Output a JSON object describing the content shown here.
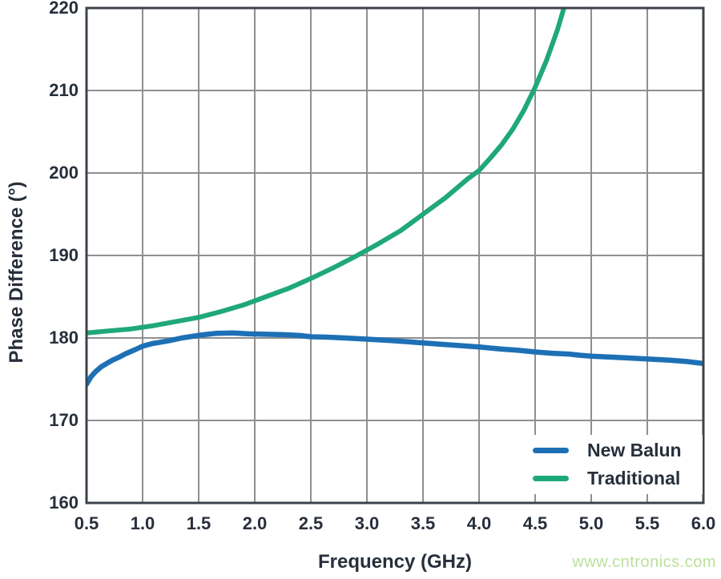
{
  "watermark": "www.cntronics.com",
  "colors": {
    "new_balun_blue": "#1d70b5",
    "traditional_green": "#1fa878",
    "text": "#272f3b",
    "grid": "#8f8f8f",
    "plot_border": "#3d434d",
    "watermark_green": "#b9e19c",
    "background": "#ffffff"
  },
  "chart_data": {
    "type": "line",
    "title": "",
    "xlabel": "Frequency (GHz)",
    "ylabel": "Phase Difference (°)",
    "xlim": [
      0.5,
      6.0
    ],
    "ylim": [
      160,
      220
    ],
    "grid": true,
    "legend_position": "lower right",
    "x_ticks": [
      "0.5",
      "1.0",
      "1.5",
      "2.0",
      "2.5",
      "3.0",
      "3.5",
      "4.0",
      "4.5",
      "5.0",
      "5.5",
      "6.0"
    ],
    "y_ticks": [
      "160",
      "170",
      "180",
      "190",
      "200",
      "210",
      "220"
    ],
    "series": [
      {
        "name": "New Balun",
        "color_key": "new_balun_blue",
        "points": [
          [
            0.5,
            174.4
          ],
          [
            0.54,
            175.3
          ],
          [
            0.58,
            175.9
          ],
          [
            0.63,
            176.5
          ],
          [
            0.68,
            176.9
          ],
          [
            0.73,
            177.3
          ],
          [
            0.78,
            177.6
          ],
          [
            0.85,
            178.1
          ],
          [
            0.92,
            178.5
          ],
          [
            1.0,
            179.0
          ],
          [
            1.08,
            179.3
          ],
          [
            1.17,
            179.5
          ],
          [
            1.25,
            179.7
          ],
          [
            1.35,
            180.0
          ],
          [
            1.45,
            180.2
          ],
          [
            1.55,
            180.4
          ],
          [
            1.65,
            180.55
          ],
          [
            1.8,
            180.6
          ],
          [
            1.95,
            180.5
          ],
          [
            2.1,
            180.45
          ],
          [
            2.25,
            180.4
          ],
          [
            2.4,
            180.3
          ],
          [
            2.5,
            180.15
          ],
          [
            2.65,
            180.1
          ],
          [
            2.8,
            180.0
          ],
          [
            3.0,
            179.85
          ],
          [
            3.2,
            179.7
          ],
          [
            3.4,
            179.5
          ],
          [
            3.6,
            179.3
          ],
          [
            3.8,
            179.1
          ],
          [
            4.0,
            178.9
          ],
          [
            4.2,
            178.65
          ],
          [
            4.35,
            178.5
          ],
          [
            4.5,
            178.3
          ],
          [
            4.65,
            178.15
          ],
          [
            4.8,
            178.05
          ],
          [
            4.9,
            177.9
          ],
          [
            5.0,
            177.8
          ],
          [
            5.15,
            177.7
          ],
          [
            5.3,
            177.6
          ],
          [
            5.5,
            177.45
          ],
          [
            5.7,
            177.3
          ],
          [
            5.85,
            177.15
          ],
          [
            6.0,
            176.9
          ]
        ]
      },
      {
        "name": "Traditional",
        "color_key": "traditional_green",
        "points": [
          [
            0.5,
            180.6
          ],
          [
            0.7,
            180.85
          ],
          [
            0.9,
            181.1
          ],
          [
            1.1,
            181.5
          ],
          [
            1.3,
            182.0
          ],
          [
            1.5,
            182.5
          ],
          [
            1.7,
            183.2
          ],
          [
            1.9,
            184.0
          ],
          [
            2.1,
            185.0
          ],
          [
            2.3,
            186.0
          ],
          [
            2.5,
            187.2
          ],
          [
            2.7,
            188.5
          ],
          [
            2.9,
            189.9
          ],
          [
            3.1,
            191.4
          ],
          [
            3.3,
            193.0
          ],
          [
            3.5,
            195.0
          ],
          [
            3.7,
            197.0
          ],
          [
            3.9,
            199.3
          ],
          [
            4.0,
            200.3
          ],
          [
            4.1,
            201.8
          ],
          [
            4.2,
            203.4
          ],
          [
            4.3,
            205.3
          ],
          [
            4.4,
            207.6
          ],
          [
            4.5,
            210.4
          ],
          [
            4.6,
            213.6
          ],
          [
            4.7,
            217.4
          ],
          [
            4.8,
            222.0
          ]
        ]
      }
    ]
  }
}
